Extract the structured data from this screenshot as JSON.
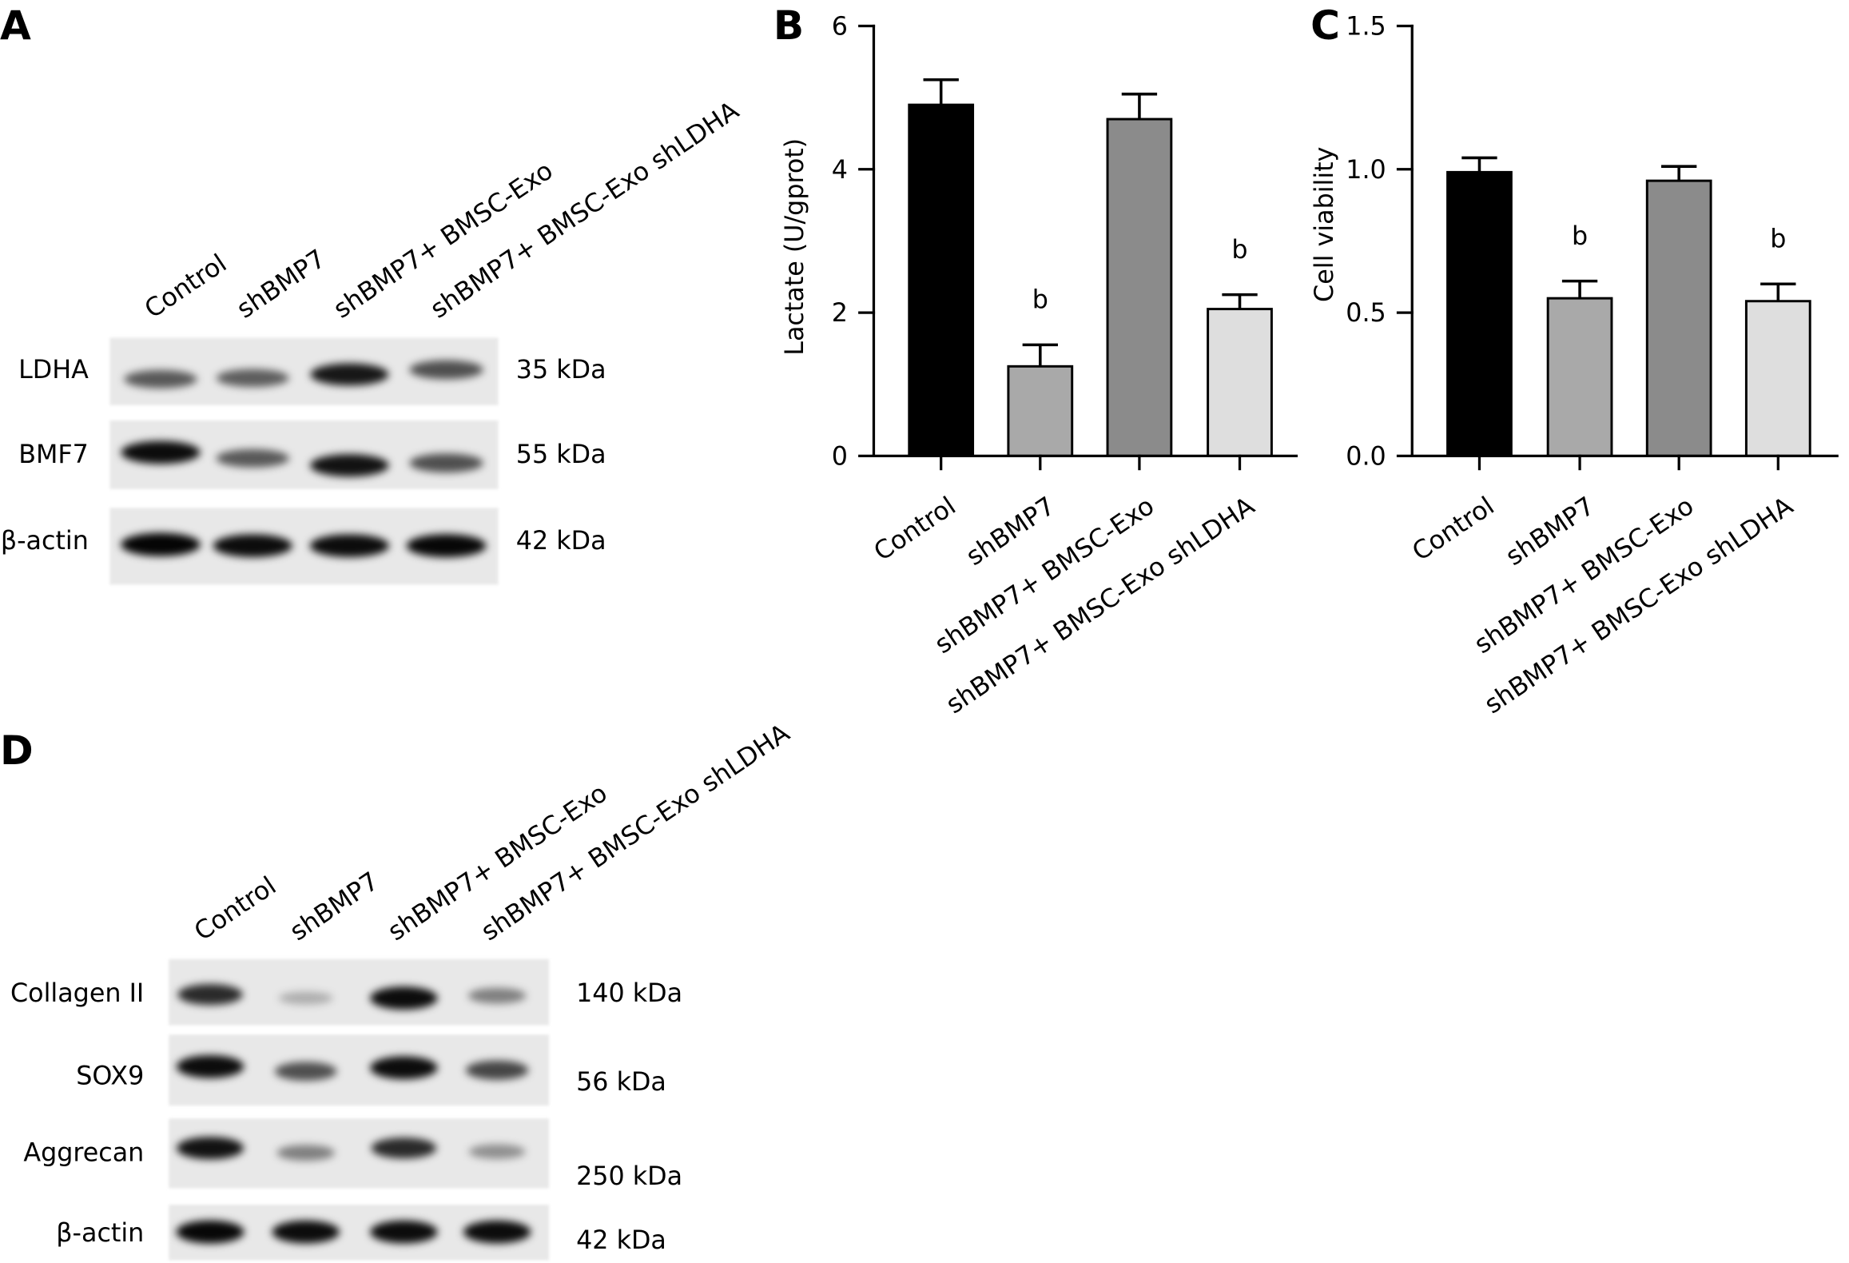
{
  "panel_a": {
    "letter": "A",
    "lanes": [
      "Control",
      "shBMP7",
      "shBMP7+ BMSC-Exo",
      "shBMP7+ BMSC-Exo shLDHA"
    ],
    "rows": [
      {
        "label": "LDHA",
        "size": "35 kDa",
        "intensity": [
          0.62,
          0.6,
          0.9,
          0.66
        ]
      },
      {
        "label": "BMF7",
        "size": "55 kDa",
        "intensity": [
          0.95,
          0.62,
          0.92,
          0.66
        ]
      },
      {
        "label": "β-actin",
        "size": "42 kDa",
        "intensity": [
          0.98,
          0.95,
          0.95,
          0.97
        ]
      }
    ]
  },
  "panel_d": {
    "letter": "D",
    "lanes": [
      "Control",
      "shBMP7",
      "shBMP7+ BMSC-Exo",
      "shBMP7+ BMSC-Exo shLDHA"
    ],
    "rows": [
      {
        "label": "Collagen II",
        "size": "140 kDa",
        "intensity": [
          0.82,
          0.25,
          0.95,
          0.45
        ]
      },
      {
        "label": "SOX9",
        "size": "56 kDa",
        "intensity": [
          0.95,
          0.66,
          0.95,
          0.7
        ]
      },
      {
        "label": "Aggrecan",
        "size": "250 kDa",
        "intensity": [
          0.92,
          0.45,
          0.82,
          0.38
        ]
      },
      {
        "label": "β-actin",
        "size": "42 kDa",
        "intensity": [
          0.97,
          0.95,
          0.95,
          0.95
        ]
      }
    ]
  },
  "chart_data": [
    {
      "panel": "B",
      "type": "bar",
      "categories": [
        "Control",
        "shBMP7",
        "shBMP7+ BMSC-Exo",
        "shBMP7+ BMSC-Exo shLDHA"
      ],
      "values": [
        4.9,
        1.25,
        4.7,
        2.05
      ],
      "errors": [
        0.35,
        0.3,
        0.35,
        0.2
      ],
      "annotations": [
        {
          "index": 1,
          "text": "b"
        },
        {
          "index": 3,
          "text": "b"
        }
      ],
      "ylabel": "Lactate (U/gprot)",
      "ylim": [
        0,
        6
      ],
      "yticks": [
        0,
        2,
        4,
        6
      ],
      "ytick_labels": [
        "0",
        "2",
        "4",
        "6"
      ],
      "bar_colors": [
        "#000000",
        "#a9a9a9",
        "#8b8b8b",
        "#dedede"
      ],
      "grid": false
    },
    {
      "panel": "C",
      "type": "bar",
      "categories": [
        "Control",
        "shBMP7",
        "shBMP7+ BMSC-Exo",
        "shBMP7+ BMSC-Exo shLDHA"
      ],
      "values": [
        0.99,
        0.55,
        0.96,
        0.54
      ],
      "errors": [
        0.05,
        0.06,
        0.05,
        0.06
      ],
      "annotations": [
        {
          "index": 1,
          "text": "b"
        },
        {
          "index": 3,
          "text": "b"
        }
      ],
      "ylabel": "Cell viability",
      "ylim": [
        0,
        1.5
      ],
      "yticks": [
        0,
        0.5,
        1.0,
        1.5
      ],
      "ytick_labels": [
        "0.0",
        "0.5",
        "1.0",
        "1.5"
      ],
      "bar_colors": [
        "#000000",
        "#a9a9a9",
        "#8b8b8b",
        "#dedede"
      ],
      "grid": false
    }
  ]
}
